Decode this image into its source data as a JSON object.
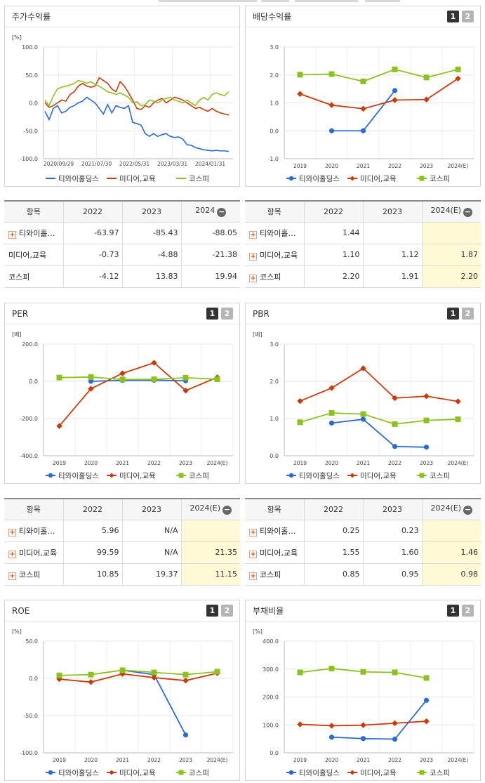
{
  "colors": {
    "s1": "#2a6ad8",
    "s2": "#cc3a0a",
    "s3": "#8cc21e"
  },
  "legend": [
    "티와이홀딩스",
    "미디어,교육",
    "코스피"
  ],
  "panels": {
    "p1": {
      "title": "주가수익률",
      "unit": "[%]"
    },
    "p2": {
      "title": "배당수익률",
      "unit": "",
      "b1": "1",
      "b2": "2"
    },
    "p3": {
      "title": "PER",
      "unit": "[배]",
      "b1": "1",
      "b2": "2"
    },
    "p4": {
      "title": "PBR",
      "unit": "[배]",
      "b1": "1",
      "b2": "2"
    },
    "p5": {
      "title": "ROE",
      "unit": "[%]",
      "b1": "1",
      "b2": "2"
    },
    "p6": {
      "title": "부채비율",
      "unit": "[%]",
      "b1": "1",
      "b2": "2"
    }
  },
  "tables": {
    "t1": {
      "head": [
        "항목",
        "2022",
        "2023",
        "2024"
      ],
      "rows": [
        {
          "label": "티와이홀…",
          "plus": true,
          "v": [
            "-63.97",
            "-85.43",
            "-88.05"
          ]
        },
        {
          "label": "미디어,교육",
          "plus": false,
          "v": [
            "-0.73",
            "-4.88",
            "-21.38"
          ]
        },
        {
          "label": "코스피",
          "plus": false,
          "v": [
            "-4.12",
            "13.83",
            "19.94"
          ]
        }
      ]
    },
    "t2": {
      "head": [
        "항목",
        "2022",
        "2023",
        "2024(E)"
      ],
      "rows": [
        {
          "label": "티와이홀…",
          "plus": true,
          "v": [
            "1.44",
            "",
            ""
          ]
        },
        {
          "label": "미디어,교육",
          "plus": true,
          "v": [
            "1.10",
            "1.12",
            "1.87"
          ]
        },
        {
          "label": "코스피",
          "plus": true,
          "v": [
            "2.20",
            "1.91",
            "2.20"
          ]
        }
      ]
    },
    "t3": {
      "head": [
        "항목",
        "2022",
        "2023",
        "2024(E)"
      ],
      "rows": [
        {
          "label": "티와이홀…",
          "plus": true,
          "v": [
            "5.96",
            "N/A",
            ""
          ]
        },
        {
          "label": "미디어,교육",
          "plus": true,
          "v": [
            "99.59",
            "N/A",
            "21.35"
          ]
        },
        {
          "label": "코스피",
          "plus": true,
          "v": [
            "10.85",
            "19.37",
            "11.15"
          ]
        }
      ]
    },
    "t4": {
      "head": [
        "항목",
        "2022",
        "2023",
        "2024(E)"
      ],
      "rows": [
        {
          "label": "티와이홀…",
          "plus": true,
          "v": [
            "0.25",
            "0.23",
            ""
          ]
        },
        {
          "label": "미디어,교육",
          "plus": true,
          "v": [
            "1.55",
            "1.60",
            "1.46"
          ]
        },
        {
          "label": "코스피",
          "plus": true,
          "v": [
            "0.85",
            "0.95",
            "0.98"
          ]
        }
      ]
    }
  },
  "chart_data": [
    {
      "type": "line",
      "title": "주가수익률",
      "ylabel": "[%]",
      "ylim": [
        -100,
        100
      ],
      "yticks": [
        "100.0",
        "50.0",
        "0.0",
        "-50.0",
        "-100.0"
      ],
      "xticks": [
        "2020/09/29",
        "2021/07/30",
        "2022/05/31",
        "2023/03/31",
        "2024/01/31"
      ],
      "series": [
        {
          "name": "티와이홀딩스",
          "values": [
            -15,
            -30,
            -10,
            -5,
            -18,
            -15,
            -8,
            -5,
            0,
            3,
            10,
            5,
            0,
            -10,
            -20,
            -3,
            -18,
            -5,
            -8,
            -10,
            -5,
            -35,
            -37,
            -40,
            -55,
            -60,
            -55,
            -60,
            -57,
            -55,
            -60,
            -62,
            -61,
            -65,
            -75,
            -76,
            -80,
            -82,
            -84,
            -85,
            -86,
            -85,
            -86,
            -86,
            -87
          ]
        },
        {
          "name": "미디어,교육",
          "values": [
            0,
            -8,
            -5,
            0,
            5,
            3,
            15,
            20,
            30,
            35,
            30,
            28,
            30,
            45,
            40,
            35,
            25,
            20,
            38,
            30,
            18,
            5,
            -10,
            -12,
            -5,
            -8,
            0,
            5,
            8,
            0,
            5,
            10,
            8,
            5,
            0,
            -5,
            -10,
            -8,
            -12,
            -15,
            -10,
            -15,
            -18,
            -20,
            -22
          ]
        },
        {
          "name": "코스피",
          "values": [
            5,
            -5,
            12,
            25,
            28,
            30,
            32,
            35,
            40,
            38,
            35,
            38,
            33,
            30,
            25,
            20,
            18,
            15,
            18,
            14,
            10,
            0,
            2,
            -5,
            -3,
            5,
            3,
            0,
            5,
            8,
            10,
            5,
            3,
            0,
            5,
            0,
            -5,
            5,
            10,
            5,
            15,
            18,
            15,
            13,
            20
          ]
        }
      ]
    },
    {
      "type": "line",
      "title": "배당수익률",
      "ylim": [
        -1,
        3
      ],
      "yticks": [
        "3.0",
        "2.0",
        "1.0",
        "0.0",
        "-1.0"
      ],
      "categories": [
        "2019",
        "2020",
        "2021",
        "2022",
        "2023",
        "2024(E)"
      ],
      "series": [
        {
          "name": "티와이홀딩스",
          "values": [
            null,
            0.0,
            0.0,
            1.44,
            null,
            null
          ]
        },
        {
          "name": "미디어,교육",
          "values": [
            1.32,
            0.92,
            0.79,
            1.1,
            1.12,
            1.87
          ]
        },
        {
          "name": "코스피",
          "values": [
            2.01,
            2.03,
            1.77,
            2.2,
            1.91,
            2.2
          ]
        }
      ]
    },
    {
      "type": "line",
      "title": "PER",
      "ylabel": "[배]",
      "ylim": [
        -400,
        200
      ],
      "yticks": [
        "200.0",
        "0.0",
        "-200.0",
        "-400.0"
      ],
      "categories": [
        "2019",
        "2020",
        "2021",
        "2022",
        "2023",
        "2024(E)"
      ],
      "series": [
        {
          "name": "티와이홀딩스",
          "values": [
            null,
            0.0,
            5.0,
            5.96,
            3.0,
            null
          ]
        },
        {
          "name": "미디어,교육",
          "values": [
            -240,
            -40,
            43,
            99.59,
            -50,
            21.35
          ]
        },
        {
          "name": "코스피",
          "values": [
            20,
            23,
            10,
            10.85,
            19.37,
            11.15
          ]
        }
      ]
    },
    {
      "type": "line",
      "title": "PBR",
      "ylabel": "[배]",
      "ylim": [
        0,
        3
      ],
      "yticks": [
        "3.0",
        "2.0",
        "1.0",
        "0.0"
      ],
      "categories": [
        "2019",
        "2020",
        "2021",
        "2022",
        "2023",
        "2024(E)"
      ],
      "series": [
        {
          "name": "티와이홀딩스",
          "values": [
            null,
            0.88,
            0.98,
            0.25,
            0.23,
            null
          ]
        },
        {
          "name": "미디어,교육",
          "values": [
            1.47,
            1.82,
            2.35,
            1.55,
            1.6,
            1.46
          ]
        },
        {
          "name": "코스피",
          "values": [
            0.9,
            1.15,
            1.12,
            0.85,
            0.95,
            0.98
          ]
        }
      ]
    },
    {
      "type": "line",
      "title": "ROE",
      "ylabel": "[%]",
      "ylim": [
        -100,
        50
      ],
      "yticks": [
        "50.0",
        "0.0",
        "-50.0",
        "-100.0"
      ],
      "categories": [
        "2019",
        "2020",
        "2021",
        "2022",
        "2023",
        "2024(E)"
      ],
      "series": [
        {
          "name": "티와이홀딩스",
          "values": [
            null,
            null,
            11,
            5,
            -76,
            null
          ]
        },
        {
          "name": "미디어,교육",
          "values": [
            -1,
            -5,
            6,
            1,
            -3,
            7
          ]
        },
        {
          "name": "코스피",
          "values": [
            4,
            5,
            11,
            8,
            5,
            9
          ]
        }
      ]
    },
    {
      "type": "line",
      "title": "부채비율",
      "ylabel": "[%]",
      "ylim": [
        0,
        400
      ],
      "yticks": [
        "400.0",
        "300.0",
        "200.0",
        "100.0",
        "0.0"
      ],
      "categories": [
        "2019",
        "2020",
        "2021",
        "2022",
        "2023",
        "2024(E)"
      ],
      "series": [
        {
          "name": "티와이홀딩스",
          "values": [
            null,
            56,
            51,
            49,
            188,
            null
          ]
        },
        {
          "name": "미디어,교육",
          "values": [
            102,
            97,
            99,
            106,
            113,
            null
          ]
        },
        {
          "name": "코스피",
          "values": [
            288,
            302,
            290,
            288,
            268,
            null
          ]
        }
      ]
    }
  ]
}
